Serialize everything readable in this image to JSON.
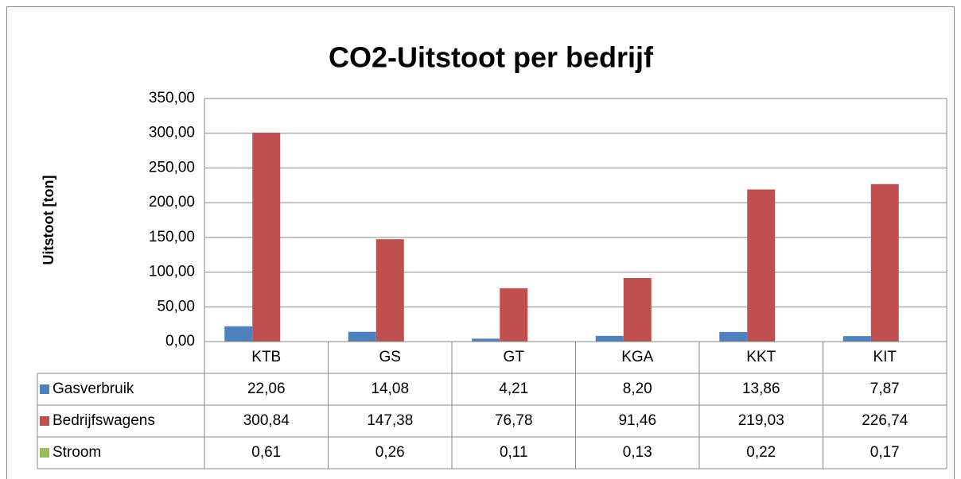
{
  "chart_data": {
    "type": "bar",
    "title": "CO2-Uitstoot per bedrijf",
    "y_label": "Uitstoot [ton]",
    "categories": [
      "KTB",
      "GS",
      "GT",
      "KGA",
      "KKT",
      "KIT"
    ],
    "series": [
      {
        "name": "Gasverbruik",
        "color": "#4f81bd",
        "values": [
          22.06,
          14.08,
          4.21,
          8.2,
          13.86,
          7.87
        ],
        "value_labels": [
          "22,06",
          "14,08",
          "4,21",
          "8,20",
          "13,86",
          "7,87"
        ]
      },
      {
        "name": "Bedrijfswagens",
        "color": "#c0504d",
        "values": [
          300.84,
          147.38,
          76.78,
          91.46,
          219.03,
          226.74
        ],
        "value_labels": [
          "300,84",
          "147,38",
          "76,78",
          "91,46",
          "219,03",
          "226,74"
        ]
      },
      {
        "name": "Stroom",
        "color": "#9bbb59",
        "values": [
          0.61,
          0.26,
          0.11,
          0.13,
          0.22,
          0.17
        ],
        "value_labels": [
          "0,61",
          "0,26",
          "0,11",
          "0,13",
          "0,22",
          "0,17"
        ]
      }
    ],
    "ylim": [
      0,
      350
    ],
    "yticks": [
      {
        "value": 0,
        "label": "0,00"
      },
      {
        "value": 50,
        "label": "50,00"
      },
      {
        "value": 100,
        "label": "100,00"
      },
      {
        "value": 150,
        "label": "150,00"
      },
      {
        "value": 200,
        "label": "200,00"
      },
      {
        "value": 250,
        "label": "250,00"
      },
      {
        "value": 300,
        "label": "300,00"
      },
      {
        "value": 350,
        "label": "350,00"
      }
    ],
    "grid": true,
    "data_table": true
  }
}
